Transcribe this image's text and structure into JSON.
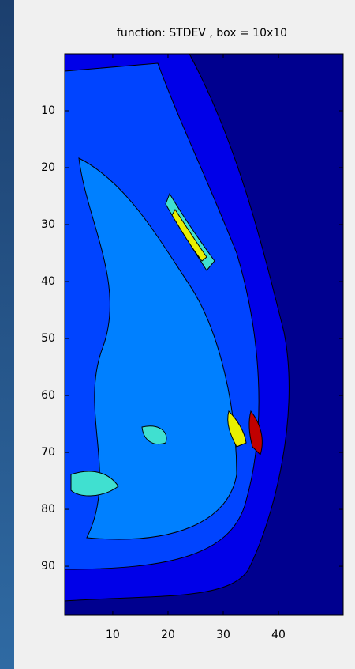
{
  "chart_data": {
    "type": "contour",
    "title": "function: STDEV , box = 10x10",
    "xlim": [
      1.3,
      51.7
    ],
    "xticks": [
      10,
      20,
      30,
      40
    ],
    "ylim": [
      0,
      98.6
    ],
    "yticks": [
      10,
      20,
      30,
      40,
      50,
      60,
      70,
      80,
      90
    ],
    "y_reversed": true
  }
}
